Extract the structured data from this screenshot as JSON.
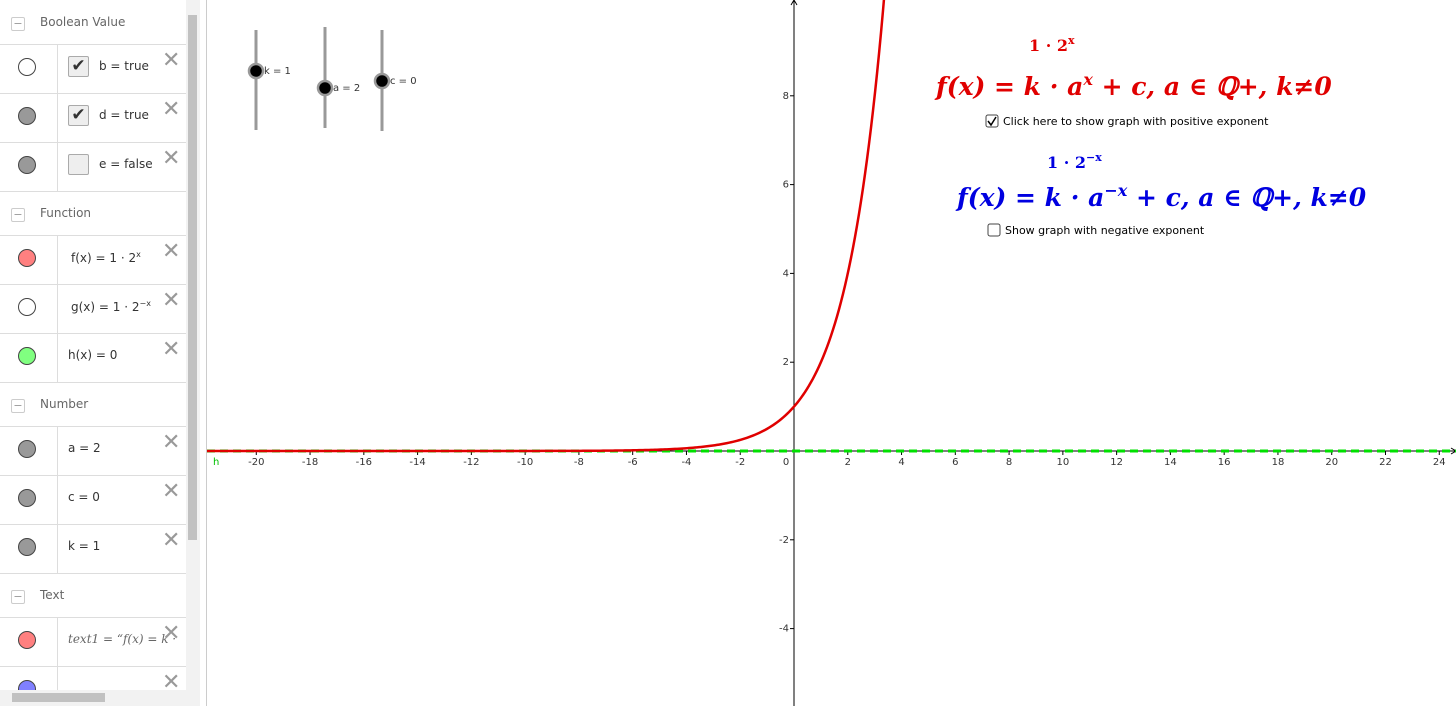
{
  "algebra": {
    "groups": [
      {
        "title": "Boolean Value",
        "items": [
          {
            "color": "#ffffff",
            "checked": true,
            "label": "b = true"
          },
          {
            "color": "#999999",
            "checked": true,
            "label": "d = true"
          },
          {
            "color": "#999999",
            "checked": false,
            "label": "e = false"
          }
        ]
      },
      {
        "title": "Function",
        "items": [
          {
            "color": "#ff8080",
            "label": "f(x) = 1 · 2",
            "sup": "x"
          },
          {
            "color": "#ffffff",
            "label": "g(x) = 1 · 2",
            "sup": "−x"
          },
          {
            "color": "#80ff80",
            "label": "h(x) = 0"
          }
        ]
      },
      {
        "title": "Number",
        "items": [
          {
            "color": "#999999",
            "label": "a = 2"
          },
          {
            "color": "#999999",
            "label": "c = 0"
          },
          {
            "color": "#999999",
            "label": "k = 1"
          }
        ]
      },
      {
        "title": "Text",
        "items": [
          {
            "color": "#ff8080",
            "label": "text1 = “f(x) = k ·",
            "italic": true
          },
          {
            "color": "#8080ff"
          }
        ]
      }
    ]
  },
  "graphics": {
    "sliders": [
      {
        "label": "k = 1",
        "value": 1
      },
      {
        "label": "a = 2",
        "value": 2
      },
      {
        "label": "c = 0",
        "value": 0
      }
    ],
    "xticks": [
      -20,
      -18,
      -16,
      -14,
      -12,
      -10,
      -8,
      -6,
      -4,
      -2,
      0,
      2,
      4,
      6,
      8,
      10,
      12,
      14,
      16,
      18,
      20,
      22,
      24
    ],
    "yticks": [
      -4,
      -2,
      2,
      4,
      6,
      8
    ],
    "line_label": "h",
    "positive": {
      "value_before": "1 · 2",
      "value_sup": "x",
      "before": "f(x) = k · a",
      "sup": "x",
      "after": " + c, a ∈ ℚ+, k≠0",
      "checkbox": "Click here to show graph with positive exponent",
      "checked": true
    },
    "negative": {
      "value_before": "1 · 2",
      "value_sup": "−x",
      "before": "f(x) = k · a",
      "sup": "−x",
      "after": " + c, a ∈ ℚ+, k≠0",
      "checkbox": "Show graph with negative exponent",
      "checked": false
    }
  }
}
